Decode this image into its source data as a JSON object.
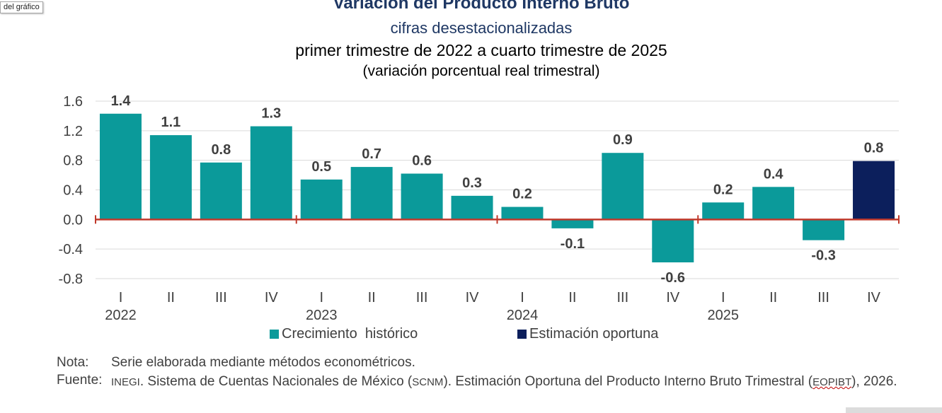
{
  "tag": "del gráfico",
  "chart_data": {
    "type": "bar",
    "title": "Variación del Producto Interno Bruto",
    "subtitle_lines": [
      "cifras desestacionalizadas",
      "primer trimestre de 2022 a cuarto trimestre de 2025",
      "(variación porcentual real trimestral)"
    ],
    "categories": [
      "I",
      "II",
      "III",
      "IV",
      "I",
      "II",
      "III",
      "IV",
      "I",
      "II",
      "III",
      "IV",
      "I",
      "II",
      "III",
      "IV"
    ],
    "years": [
      "2022",
      "2023",
      "2024",
      "2025"
    ],
    "values": [
      1.43,
      1.14,
      0.77,
      1.26,
      0.54,
      0.71,
      0.62,
      0.32,
      0.17,
      -0.12,
      0.9,
      -0.58,
      0.23,
      0.44,
      -0.28,
      0.79
    ],
    "data_labels": [
      "1.4",
      "1.1",
      "0.8",
      "1.3",
      "0.5",
      "0.7",
      "0.6",
      "0.3",
      "0.2",
      "-0.1",
      "0.9",
      "-0.6",
      "0.2",
      "0.4",
      "-0.3",
      "0.8"
    ],
    "series": [
      {
        "name": "Crecimiento  histórico",
        "color": "#0b9a9a",
        "indices": [
          0,
          1,
          2,
          3,
          4,
          5,
          6,
          7,
          8,
          9,
          10,
          11,
          12,
          13,
          14
        ]
      },
      {
        "name": "Estimación oportuna",
        "color": "#0c1f5c",
        "indices": [
          15
        ]
      }
    ],
    "yticks": [
      "1.6",
      "1.2",
      "0.8",
      "0.4",
      "0.0",
      "-0.4",
      "-0.8"
    ],
    "ylim": [
      -0.8,
      1.6
    ],
    "grid": true,
    "zero_line_color": "#c0392b",
    "legend_position": "bottom"
  },
  "notes": {
    "note_label": "Nota:",
    "note_text": "Serie elaborada mediante métodos econométricos.",
    "source_label": "Fuente:",
    "source_inegi": "INEGI",
    "source_part1": ". Sistema de Cuentas Nacionales de México (",
    "source_scnm": "SCNM",
    "source_part2": "). Estimación Oportuna del Producto Interno Bruto Trimestral (",
    "source_eopibt": "EOPIBT",
    "source_part3": "), 2026."
  }
}
